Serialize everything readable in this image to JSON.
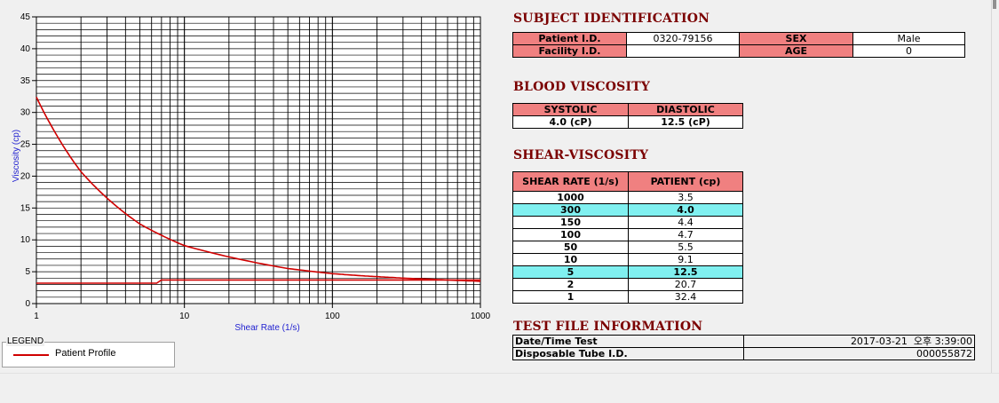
{
  "chart_data": {
    "type": "line",
    "xlabel": "Shear Rate (1/s)",
    "ylabel": "Viscosity (cp)",
    "x_scale": "log",
    "xlim": [
      1,
      1000
    ],
    "ylim": [
      0,
      45
    ],
    "x_ticks": [
      1,
      10,
      100,
      1000
    ],
    "y_ticks": [
      0,
      5,
      10,
      15,
      20,
      25,
      30,
      35,
      40,
      45
    ],
    "grid": true,
    "series": [
      {
        "name": "Patient Profile",
        "color": "#d00000",
        "x": [
          1,
          2,
          5,
          10,
          50,
          100,
          150,
          300,
          1000
        ],
        "y": [
          32.4,
          20.7,
          12.5,
          9.1,
          5.5,
          4.7,
          4.4,
          4.0,
          3.5
        ]
      },
      {
        "name": "",
        "color": "#d00000",
        "x": [
          1,
          6.5,
          7,
          1000
        ],
        "y": [
          3.2,
          3.2,
          3.7,
          3.7
        ]
      }
    ],
    "legend": {
      "title": "LEGEND",
      "position": "bottom-left",
      "entries": [
        "Patient Profile"
      ]
    }
  },
  "subject": {
    "title": "SUBJECT IDENTIFICATION",
    "patient_id_label": "Patient I.D.",
    "patient_id": "0320-79156",
    "sex_label": "SEX",
    "sex": "Male",
    "facility_label": "Facility I.D.",
    "facility": "",
    "age_label": "AGE",
    "age": "0"
  },
  "blood": {
    "title": "BLOOD VISCOSITY",
    "systolic_label": "SYSTOLIC",
    "diastolic_label": "DIASTOLIC",
    "systolic": "4.0 (cP)",
    "diastolic": "12.5 (cP)"
  },
  "shear": {
    "title": "SHEAR-VISCOSITY",
    "col_rate": "SHEAR RATE (1/s)",
    "col_patient": "PATIENT (cp)",
    "rows": [
      {
        "rate": "1000",
        "val": "3.5"
      },
      {
        "rate": "300",
        "val": "4.0"
      },
      {
        "rate": "150",
        "val": "4.4"
      },
      {
        "rate": "100",
        "val": "4.7"
      },
      {
        "rate": "50",
        "val": "5.5"
      },
      {
        "rate": "10",
        "val": "9.1"
      },
      {
        "rate": "5",
        "val": "12.5"
      },
      {
        "rate": "2",
        "val": "20.7"
      },
      {
        "rate": "1",
        "val": "32.4"
      }
    ]
  },
  "testfile": {
    "title": "TEST FILE INFORMATION",
    "date_label": "Date/Time Test",
    "date": "2017-03-21  오후 3:39:00",
    "tube_label": "Disposable Tube I.D.",
    "tube": "000055872"
  }
}
